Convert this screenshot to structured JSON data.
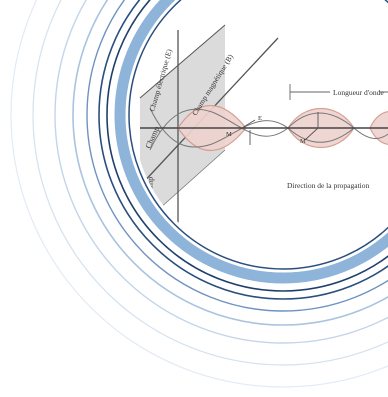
{
  "figure": {
    "labels": {
      "electric_field": "Champ électrique (E)",
      "magnetic_field": "Champ magnétique (B)",
      "champ_left": "Champ",
      "wavelength": "Longueur d'onde",
      "propagation": "Direction de la propagation",
      "e_marker": "E",
      "m_marker": "M"
    }
  },
  "colors": {
    "ring_main": "#8fb4da",
    "ring_outer_dark": "#2a4f7e",
    "ring_faint": "#c5d6ea",
    "wave_fill": "#efd3cf",
    "wave_stroke": "#d49a8c",
    "plane_fill": "#bdbdbd"
  }
}
